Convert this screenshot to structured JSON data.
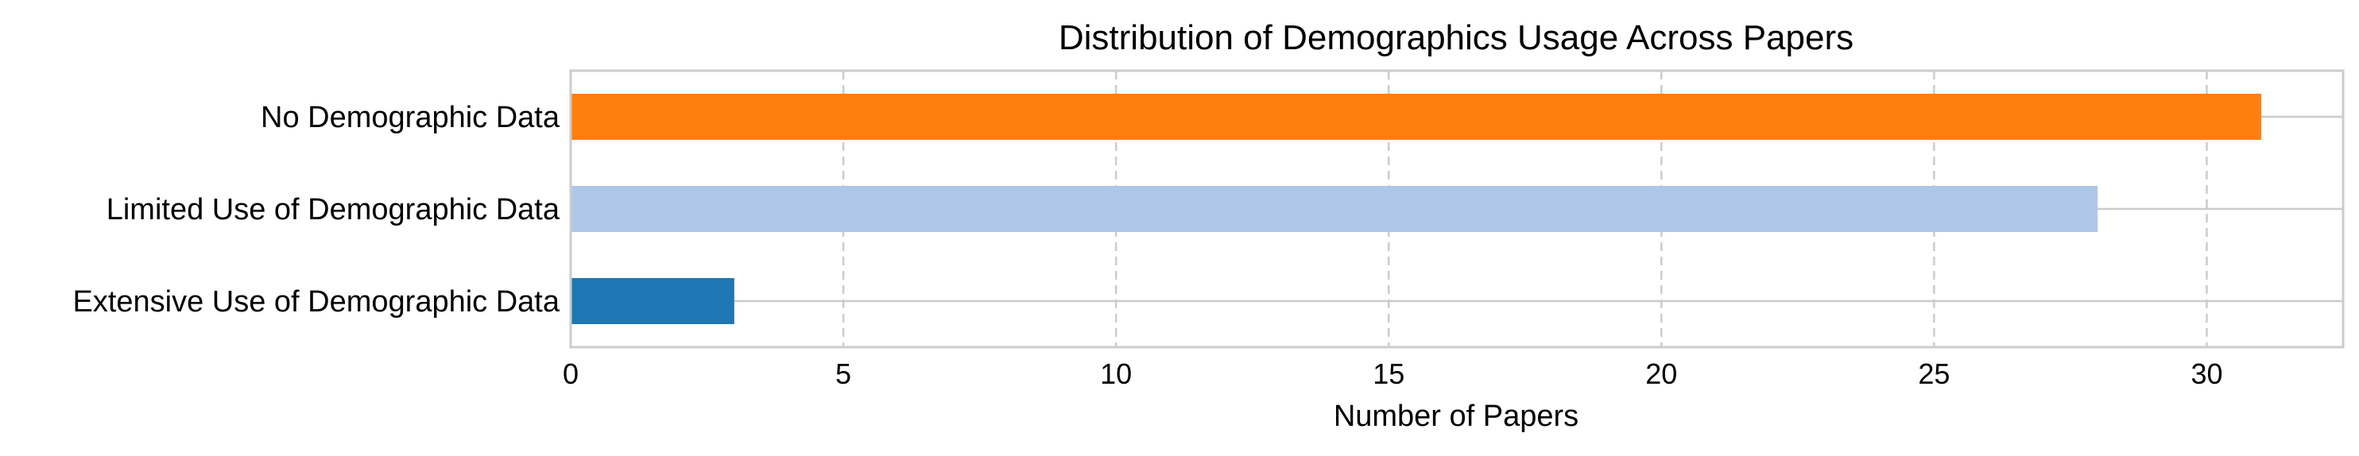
{
  "chart_data": {
    "type": "bar",
    "orientation": "horizontal",
    "title": "Distribution of Demographics Usage Across Papers",
    "xlabel": "Number of Papers",
    "ylabel": "",
    "categories": [
      "Extensive Use of Demographic Data",
      "Limited Use of Demographic Data",
      "No Demographic Data"
    ],
    "values": [
      3,
      28,
      31
    ],
    "colors": [
      "#1f77b4",
      "#aec7e8",
      "#ff7f0e"
    ],
    "xlim": [
      0,
      32.5
    ],
    "xticks": [
      0,
      5,
      10,
      15,
      20,
      25,
      30
    ],
    "grid": "x dashed",
    "legend": "none"
  }
}
